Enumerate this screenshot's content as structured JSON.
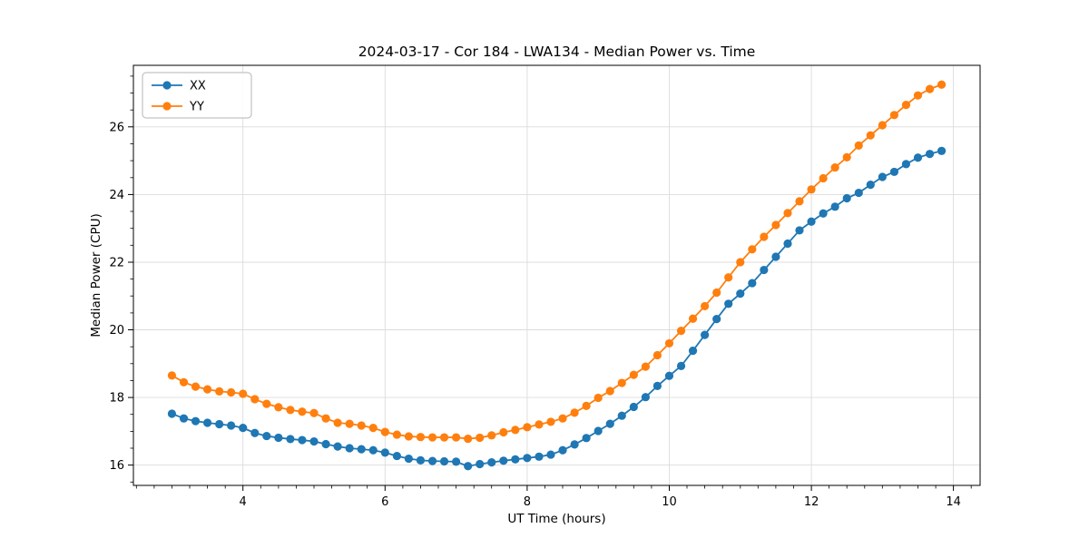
{
  "figure": {
    "background": "#ffffff",
    "spine_color": "#000000",
    "grid_color": "#dcdcdc"
  },
  "chart_data": {
    "type": "line",
    "title": "2024-03-17 - Cor 184 - LWA134 - Median Power vs. Time",
    "xlabel": "UT Time (hours)",
    "ylabel": "Median Power (CPU)",
    "xlim": [
      2.458,
      14.375
    ],
    "ylim": [
      15.4,
      27.82
    ],
    "x_ticks": [
      4,
      6,
      8,
      10,
      12,
      14
    ],
    "y_ticks": [
      16,
      18,
      20,
      22,
      24,
      26
    ],
    "x_minor_step": 0.25,
    "y_minor_step": 0.5,
    "grid": true,
    "legend_position": "upper left",
    "marker": "circle",
    "x": [
      3.0,
      3.167,
      3.333,
      3.5,
      3.667,
      3.833,
      4.0,
      4.167,
      4.333,
      4.5,
      4.667,
      4.833,
      5.0,
      5.167,
      5.333,
      5.5,
      5.667,
      5.833,
      6.0,
      6.167,
      6.333,
      6.5,
      6.667,
      6.833,
      7.0,
      7.167,
      7.333,
      7.5,
      7.667,
      7.833,
      8.0,
      8.167,
      8.333,
      8.5,
      8.667,
      8.833,
      9.0,
      9.167,
      9.333,
      9.5,
      9.667,
      9.833,
      10.0,
      10.167,
      10.333,
      10.5,
      10.667,
      10.833,
      11.0,
      11.167,
      11.333,
      11.5,
      11.667,
      11.833,
      12.0,
      12.167,
      12.333,
      12.5,
      12.667,
      12.833,
      13.0,
      13.167,
      13.333,
      13.5,
      13.667,
      13.833
    ],
    "series": [
      {
        "name": "XX",
        "color": "#1f77b4",
        "values": [
          17.52,
          17.38,
          17.3,
          17.25,
          17.21,
          17.17,
          17.1,
          16.95,
          16.86,
          16.81,
          16.77,
          16.74,
          16.7,
          16.62,
          16.55,
          16.5,
          16.47,
          16.44,
          16.37,
          16.27,
          16.19,
          16.14,
          16.12,
          16.11,
          16.1,
          15.97,
          16.03,
          16.08,
          16.13,
          16.17,
          16.21,
          16.25,
          16.31,
          16.44,
          16.61,
          16.8,
          17.01,
          17.22,
          17.46,
          17.72,
          18.01,
          18.34,
          18.64,
          18.93,
          19.38,
          19.85,
          20.32,
          20.77,
          21.07,
          21.38,
          21.77,
          22.16,
          22.55,
          22.94,
          23.2,
          23.44,
          23.64,
          23.89,
          24.05,
          24.29,
          24.52,
          24.67,
          24.9,
          25.09,
          25.2,
          25.29
        ]
      },
      {
        "name": "YY",
        "color": "#ff7f0e",
        "values": [
          18.65,
          18.45,
          18.32,
          18.24,
          18.18,
          18.15,
          18.11,
          17.95,
          17.81,
          17.71,
          17.63,
          17.58,
          17.54,
          17.38,
          17.25,
          17.22,
          17.17,
          17.1,
          16.98,
          16.9,
          16.85,
          16.83,
          16.82,
          16.82,
          16.82,
          16.78,
          16.81,
          16.88,
          16.97,
          17.04,
          17.12,
          17.2,
          17.28,
          17.38,
          17.55,
          17.75,
          17.99,
          18.19,
          18.43,
          18.67,
          18.91,
          19.25,
          19.6,
          19.97,
          20.33,
          20.7,
          21.1,
          21.55,
          22.0,
          22.38,
          22.75,
          23.1,
          23.45,
          23.8,
          24.15,
          24.48,
          24.8,
          25.1,
          25.45,
          25.75,
          26.05,
          26.35,
          26.65,
          26.93,
          27.12,
          27.25
        ]
      }
    ]
  }
}
